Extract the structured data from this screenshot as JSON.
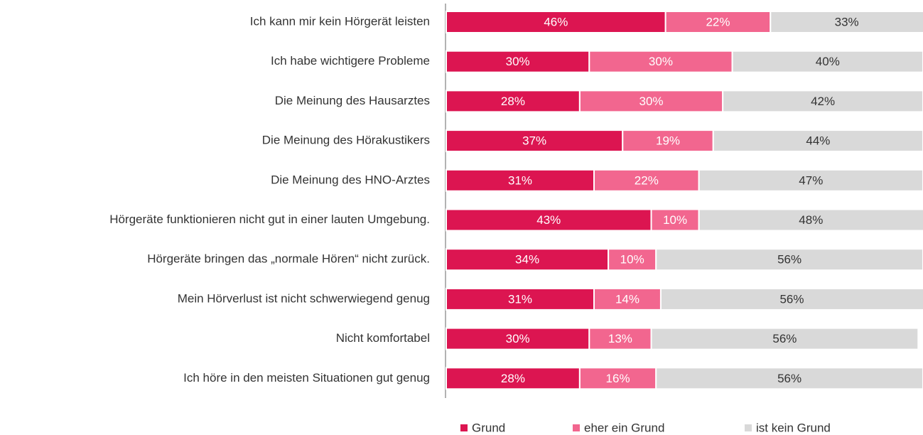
{
  "chart_data": {
    "type": "stacked_bar_horizontal",
    "categories": [
      "Ich kann mir kein Hörgerät leisten",
      "Ich habe wichtigere Probleme",
      "Die Meinung des Hausarztes",
      "Die Meinung des Hörakustikers",
      "Die Meinung des HNO-Arztes",
      "Hörgeräte funktionieren nicht gut in einer lauten Umgebung.",
      "Hörgeräte bringen das „normale Hören“ nicht zurück.",
      "Mein Hörverlust ist nicht schwerwiegend genug",
      "Nicht komfortabel",
      "Ich höre in den meisten Situationen gut genug"
    ],
    "series": [
      {
        "name": "Grund",
        "color": "#dc1551",
        "label_color": "#ffffff",
        "values": [
          46,
          30,
          28,
          37,
          31,
          43,
          34,
          31,
          30,
          28
        ],
        "value_labels": [
          "46%",
          "30%",
          "28%",
          "37%",
          "31%",
          "43%",
          "34%",
          "31%",
          "30%",
          "28%"
        ]
      },
      {
        "name": "eher ein Grund",
        "color": "#f2668f",
        "label_color": "#ffffff",
        "values": [
          22,
          30,
          30,
          19,
          22,
          10,
          10,
          14,
          13,
          16
        ],
        "value_labels": [
          "22%",
          "30%",
          "30%",
          "19%",
          "22%",
          "10%",
          "10%",
          "14%",
          "13%",
          "16%"
        ]
      },
      {
        "name": "ist kein Grund",
        "color": "#d9d9d9",
        "label_color": "#333333",
        "values": [
          33,
          40,
          42,
          44,
          47,
          48,
          56,
          56,
          56,
          56
        ],
        "value_labels": [
          "33%",
          "40%",
          "42%",
          "44%",
          "47%",
          "48%",
          "56%",
          "56%",
          "56%",
          "56%"
        ]
      }
    ],
    "xlim": [
      0,
      100
    ],
    "legend": "bottom"
  }
}
